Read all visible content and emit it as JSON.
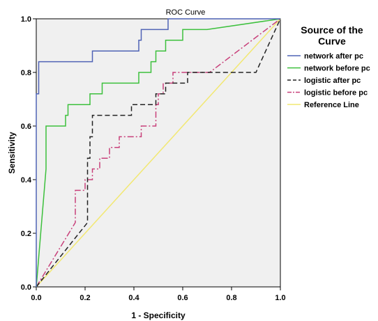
{
  "chart_data": {
    "type": "line",
    "title": "ROC Curve",
    "xlabel": "1 - Specificity",
    "ylabel": "Sensitivity",
    "xlim": [
      0,
      1
    ],
    "ylim": [
      0,
      1
    ],
    "xticks": [
      "0.0",
      "0.2",
      "0.4",
      "0.6",
      "0.8",
      "1.0"
    ],
    "yticks": [
      "0.0",
      "0.2",
      "0.4",
      "0.6",
      "0.8",
      "1.0"
    ],
    "grid": false,
    "legend": {
      "title_lines": [
        "Source of the",
        "Curve"
      ],
      "placement": "right"
    },
    "series": [
      {
        "name": "network after pc",
        "color": "#4f63b5",
        "dash": "solid",
        "points": [
          [
            0,
            0
          ],
          [
            0,
            0.72
          ],
          [
            0.01,
            0.72
          ],
          [
            0.01,
            0.84
          ],
          [
            0.23,
            0.84
          ],
          [
            0.23,
            0.88
          ],
          [
            0.42,
            0.88
          ],
          [
            0.42,
            0.92
          ],
          [
            0.43,
            0.92
          ],
          [
            0.43,
            0.96
          ],
          [
            0.54,
            0.96
          ],
          [
            0.54,
            1
          ],
          [
            1,
            1
          ]
        ]
      },
      {
        "name": "network before pc",
        "color": "#3cc03c",
        "dash": "solid",
        "points": [
          [
            0,
            0
          ],
          [
            0.04,
            0.44
          ],
          [
            0.04,
            0.6
          ],
          [
            0.12,
            0.6
          ],
          [
            0.12,
            0.64
          ],
          [
            0.13,
            0.64
          ],
          [
            0.13,
            0.68
          ],
          [
            0.22,
            0.68
          ],
          [
            0.22,
            0.72
          ],
          [
            0.27,
            0.72
          ],
          [
            0.27,
            0.76
          ],
          [
            0.42,
            0.76
          ],
          [
            0.42,
            0.8
          ],
          [
            0.47,
            0.8
          ],
          [
            0.47,
            0.84
          ],
          [
            0.49,
            0.84
          ],
          [
            0.49,
            0.88
          ],
          [
            0.53,
            0.88
          ],
          [
            0.53,
            0.92
          ],
          [
            0.6,
            0.92
          ],
          [
            0.6,
            0.96
          ],
          [
            0.7,
            0.96
          ],
          [
            1,
            1
          ]
        ]
      },
      {
        "name": "logistic after pc",
        "color": "#222222",
        "dash": "dashed",
        "points": [
          [
            0,
            0
          ],
          [
            0.21,
            0.24
          ],
          [
            0.21,
            0.48
          ],
          [
            0.22,
            0.48
          ],
          [
            0.22,
            0.56
          ],
          [
            0.23,
            0.56
          ],
          [
            0.23,
            0.64
          ],
          [
            0.39,
            0.64
          ],
          [
            0.39,
            0.68
          ],
          [
            0.49,
            0.68
          ],
          [
            0.49,
            0.72
          ],
          [
            0.53,
            0.72
          ],
          [
            0.53,
            0.76
          ],
          [
            0.62,
            0.76
          ],
          [
            0.62,
            0.8
          ],
          [
            0.9,
            0.8
          ],
          [
            1,
            1
          ]
        ]
      },
      {
        "name": "logistic before pc",
        "color": "#c8407a",
        "dash": "dashdot",
        "points": [
          [
            0,
            0
          ],
          [
            0.16,
            0.24
          ],
          [
            0.16,
            0.36
          ],
          [
            0.2,
            0.36
          ],
          [
            0.2,
            0.4
          ],
          [
            0.23,
            0.4
          ],
          [
            0.23,
            0.44
          ],
          [
            0.26,
            0.44
          ],
          [
            0.26,
            0.48
          ],
          [
            0.3,
            0.48
          ],
          [
            0.3,
            0.52
          ],
          [
            0.34,
            0.52
          ],
          [
            0.34,
            0.56
          ],
          [
            0.43,
            0.56
          ],
          [
            0.43,
            0.6
          ],
          [
            0.49,
            0.6
          ],
          [
            0.49,
            0.68
          ],
          [
            0.5,
            0.68
          ],
          [
            0.5,
            0.72
          ],
          [
            0.52,
            0.72
          ],
          [
            0.52,
            0.76
          ],
          [
            0.56,
            0.76
          ],
          [
            0.56,
            0.8
          ],
          [
            0.71,
            0.8
          ],
          [
            1,
            1
          ]
        ]
      },
      {
        "name": "Reference Line",
        "color": "#f2e872",
        "dash": "solid",
        "points": [
          [
            0,
            0
          ],
          [
            1,
            1
          ]
        ]
      }
    ]
  }
}
